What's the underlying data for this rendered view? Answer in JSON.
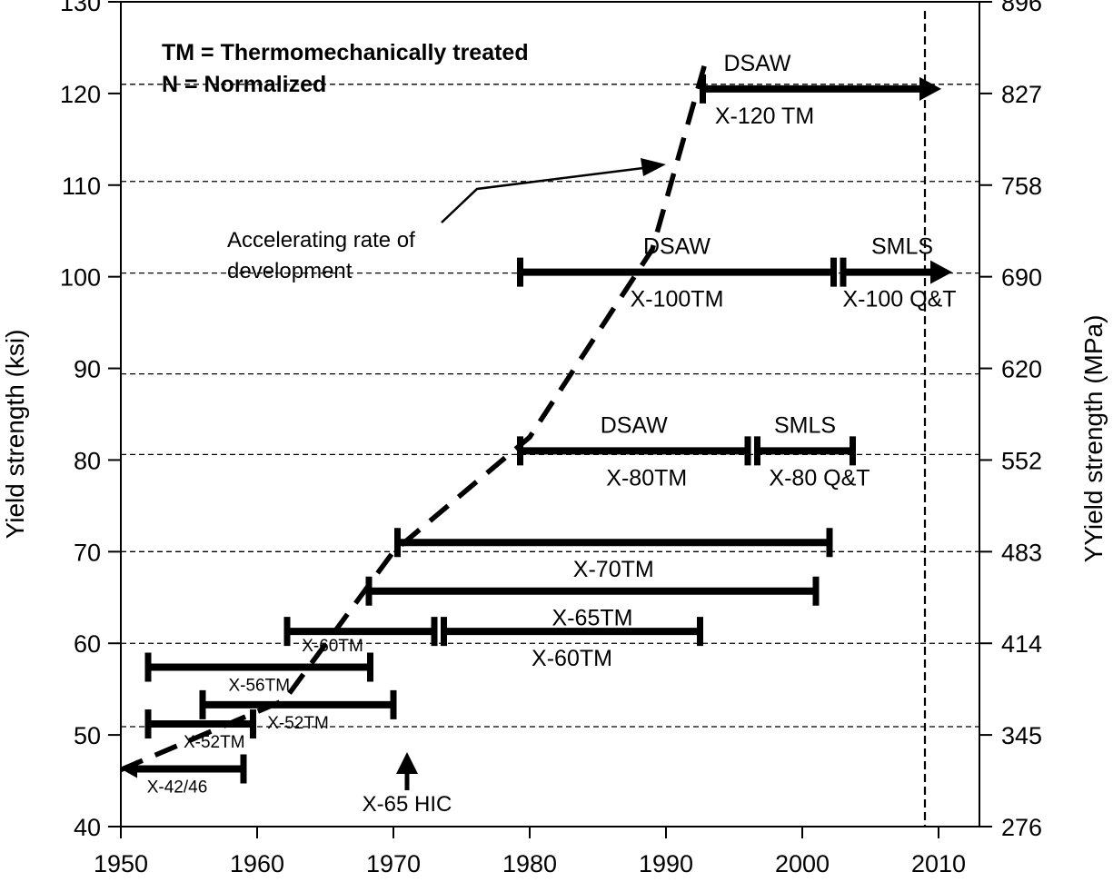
{
  "chart_data": {
    "type": "timeline",
    "xlim": [
      1950,
      2013
    ],
    "ylim": [
      40,
      130
    ],
    "x_ticks": [
      1950,
      1960,
      1970,
      1980,
      1990,
      2000,
      2010
    ],
    "y_ticks": [
      40,
      50,
      60,
      70,
      80,
      90,
      100,
      110,
      120,
      130
    ],
    "right_ticks": [
      {
        "y": 40,
        "label": "276"
      },
      {
        "y": 50,
        "label": "345"
      },
      {
        "y": 60,
        "label": "414"
      },
      {
        "y": 70,
        "label": "483"
      },
      {
        "y": 80,
        "label": "552"
      },
      {
        "y": 90,
        "label": "620"
      },
      {
        "y": 100,
        "label": "690"
      },
      {
        "y": 110,
        "label": "758"
      },
      {
        "y": 120,
        "label": "827"
      },
      {
        "y": 130,
        "label": "896"
      }
    ],
    "gridlines_y": [
      50.9,
      60,
      70,
      80.6,
      89.4,
      100.4,
      110.4,
      121,
      130
    ],
    "ylabel": "Yield strength (ksi)",
    "ylabel_right": "YYield strength (MPa)",
    "legend": [
      "TM = Thermomechanically treated",
      "N = Normalized"
    ],
    "vertical_line_x": 2009,
    "bars": [
      {
        "label": "X-42/46",
        "start": 1950,
        "end": 1959,
        "y": 46.3,
        "arrow_start": true,
        "label_pos": "below"
      },
      {
        "label": "X-52TM",
        "start": 1952,
        "end": 1959.7,
        "y": 51.2,
        "label_pos": "below"
      },
      {
        "label": "X-52TM",
        "start": 1956,
        "end": 1970,
        "y": 53.3,
        "label_pos": "below"
      },
      {
        "label": "X-56TM",
        "start": 1952,
        "end": 1968.3,
        "y": 57.4,
        "label_pos": "below"
      },
      {
        "label": "X-60TM",
        "start": 1962.2,
        "end": 1973,
        "y": 61.3,
        "label_pos": "below"
      },
      {
        "label": "X-60TM",
        "start": 1973.7,
        "end": 1992.5,
        "y": 61.3,
        "label_pos": "below"
      },
      {
        "label": "X-65TM",
        "start": 1968.2,
        "end": 2001,
        "y": 65.7,
        "label_pos": "below"
      },
      {
        "label": "X-70TM",
        "start": 1970.3,
        "end": 2002,
        "y": 71,
        "label_pos": "below"
      },
      {
        "label": "X-80TM",
        "start": 1979.3,
        "end": 1996,
        "y": 81,
        "label_pos": "below",
        "above_label": "DSAW"
      },
      {
        "label": "X-80 Q&T",
        "start": 1996.7,
        "end": 2003.7,
        "y": 81,
        "label_pos": "below",
        "above_label": "SMLS"
      },
      {
        "label": "X-100TM",
        "start": 1979.3,
        "end": 2002.3,
        "y": 100.5,
        "label_pos": "below",
        "above_label": "DSAW"
      },
      {
        "label": "X-100 Q&T",
        "start": 2003,
        "end": 2011,
        "y": 100.5,
        "arrow_end": true,
        "label_pos": "below",
        "above_label": "SMLS"
      },
      {
        "label": "X-120 TM",
        "start": 1992.7,
        "end": 2010.2,
        "y": 120.5,
        "arrow_end": true,
        "label_pos": "below",
        "above_label": "DSAW"
      }
    ],
    "annotations": [
      {
        "text": "X-65 HIC",
        "x": 1971,
        "y": 42,
        "arrow": "up"
      },
      {
        "text": "Accelerating rate of development",
        "x": 1958,
        "y": 105
      }
    ],
    "trend_line": [
      [
        1950,
        46.2
      ],
      [
        1962,
        53.8
      ],
      [
        1970,
        70
      ],
      [
        1980,
        82.5
      ],
      [
        1989,
        103
      ],
      [
        1993,
        124
      ]
    ]
  }
}
